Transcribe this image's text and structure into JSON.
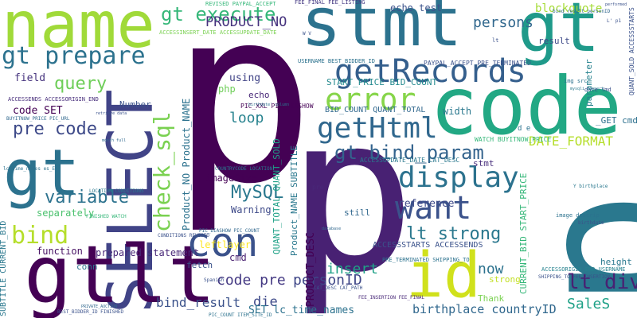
{
  "cloud": {
    "words": [
      {
        "text": "p",
        "color": "#440154"
      },
      {
        "text": "p",
        "color": "#2a788e"
      },
      {
        "text": "p",
        "color": "#482173"
      },
      {
        "text": "name",
        "color": "#a0da39"
      },
      {
        "text": "stmt",
        "color": "#2c728e"
      },
      {
        "text": "gt",
        "color": "#1f9a8a"
      },
      {
        "text": "code",
        "color": "#22a884"
      },
      {
        "text": "SELECT",
        "color": "#414487"
      },
      {
        "text": "gt",
        "color": "#2c728e"
      },
      {
        "text": "gtlt",
        "color": "#440154"
      },
      {
        "text": "id",
        "color": "#d0e11c"
      },
      {
        "text": "con",
        "color": "#3b528b"
      },
      {
        "text": "getRecords",
        "color": "#355f8d"
      },
      {
        "text": "gt prepare",
        "color": "#2c728e"
      },
      {
        "text": "check_sql",
        "color": "#7ad151"
      },
      {
        "text": "error",
        "color": "#86d549"
      },
      {
        "text": "getHtml",
        "color": "#31688e"
      },
      {
        "text": "display",
        "color": "#2c728e"
      },
      {
        "text": "want",
        "color": "#3b528b"
      },
      {
        "text": "gt bind_param",
        "color": "#33638d"
      },
      {
        "text": "bind",
        "color": "#b5de2b"
      },
      {
        "text": "gt execute",
        "color": "#35b779"
      },
      {
        "text": "lt strong",
        "color": "#2a788e"
      },
      {
        "text": "query",
        "color": "#6ece58"
      },
      {
        "text": "pre code",
        "color": "#3e4a89"
      },
      {
        "text": "variable",
        "color": "#2c728e"
      },
      {
        "text": "MySQL",
        "color": "#2a788e"
      },
      {
        "text": "DATE_FORMAT",
        "color": "#b5de2b"
      },
      {
        "text": "PRODUCT_NO",
        "color": "#46337e"
      },
      {
        "text": "persons",
        "color": "#31688e"
      },
      {
        "text": "loop",
        "color": "#26828e"
      },
      {
        "text": "insert",
        "color": "#1fa187"
      },
      {
        "text": "personID",
        "color": "#3f4788"
      },
      {
        "text": "code pre",
        "color": "#443983"
      },
      {
        "text": "bind_result",
        "color": "#3b528b"
      },
      {
        "text": "die",
        "color": "#3e4a89"
      },
      {
        "text": "lt div",
        "color": "#482173"
      },
      {
        "text": "SaleS",
        "color": "#1fa187"
      },
      {
        "text": "now",
        "color": "#2c728e"
      },
      {
        "text": "birthplace countryID",
        "color": "#31688e"
      },
      {
        "text": "echo test",
        "color": "#3b528b"
      },
      {
        "text": "blockquote",
        "color": "#a5db36"
      },
      {
        "text": "code SET",
        "color": "#440154"
      },
      {
        "text": "field",
        "color": "#46337e"
      },
      {
        "text": "using",
        "color": "#414487"
      },
      {
        "text": "php",
        "color": "#6ece58"
      },
      {
        "text": "echo",
        "color": "#482878"
      },
      {
        "text": "Number",
        "color": "#3b528b"
      },
      {
        "text": "function",
        "color": "#471063"
      },
      {
        "text": "separately",
        "color": "#4ac16d"
      },
      {
        "text": "prepared statement",
        "color": "#482878"
      },
      {
        "text": "fetch",
        "color": "#3b528b"
      },
      {
        "text": "cmd",
        "color": "#481f70"
      },
      {
        "text": "conn",
        "color": "#2c728e"
      },
      {
        "text": "Warning",
        "color": "#3e4a89"
      },
      {
        "text": "imageSize",
        "color": "#440154"
      },
      {
        "text": "leftlayer",
        "color": "#fde725"
      },
      {
        "text": "reference",
        "color": "#3e4a89"
      },
      {
        "text": "width",
        "color": "#2a788e"
      },
      {
        "text": "height",
        "color": "#2a788e"
      },
      {
        "text": "Thank",
        "color": "#7ad151"
      },
      {
        "text": "strong",
        "color": "#c2df23"
      },
      {
        "text": "stmt",
        "color": "#472d7b"
      },
      {
        "text": "result",
        "color": "#3e4a89"
      },
      {
        "text": "parameter",
        "color": "#26828e"
      },
      {
        "text": "still",
        "color": "#31688e"
      },
      {
        "text": "_GET cmd",
        "color": "#2d708e"
      },
      {
        "text": "Product_NO Product_NAME",
        "color": "#2c728e"
      },
      {
        "text": "Product_NAME SUBTITLE",
        "color": "#2a788e"
      },
      {
        "text": "QUANT_TOTAL QUANT_SOLD",
        "color": "#1fa187"
      },
      {
        "text": "PRODUCT_DESC",
        "color": "#440154"
      },
      {
        "text": "CURRENT_BID START_PRICE",
        "color": "#35b779"
      },
      {
        "text": "START_PRICE BID_COUNT",
        "color": "#23898e"
      },
      {
        "text": "BID_COUNT QUANT_TOTAL",
        "color": "#31688e"
      },
      {
        "text": "SET lc_time_names",
        "color": "#2c728e"
      },
      {
        "text": "ACCESSSTARTS ACCESSENDS",
        "color": "#3b528b"
      },
      {
        "text": "SUBTITLE CURRENT_BID",
        "color": "#2a788e"
      },
      {
        "text": "QUANT_SOLD ACCESSSTARTS",
        "color": "#3b528b"
      },
      {
        "text": "WATCH BUYITNOW_PRICE",
        "color": "#35b779"
      },
      {
        "text": "ACCESSUPDATE_DATE CAT_DESC",
        "color": "#2a788e"
      },
      {
        "text": "PIC_XXL PIC_DIASHOW",
        "color": "#440154"
      },
      {
        "text": "USERNAME BEST_BIDDER_ID",
        "color": "#2c728e"
      },
      {
        "text": "PAYPAL_ACCEPT PRE_TERMINATED",
        "color": "#3b528b"
      },
      {
        "text": "REVISED PAYPAL_ACCEPT",
        "color": "#35b779"
      },
      {
        "text": "FEE_FINAL FEE_LISTING",
        "color": "#443983"
      },
      {
        "text": "ACCESSENDS ACCESSORIGIN_END",
        "color": "#472d7b"
      },
      {
        "text": "ACCESSINSERT_DATE ACCESSUPDATE_DATE",
        "color": "#7ad151"
      },
      {
        "text": "ACCESSORIGIN_END USERNAME",
        "color": "#26828e"
      },
      {
        "text": "PRE_TERMINATED SHIPPING_TO",
        "color": "#2c728e"
      },
      {
        "text": "SHIPPING_TO FEE_INSERTION",
        "color": "#3b528b"
      },
      {
        "text": "FEE_INSERTION FEE_FINAL",
        "color": "#482878"
      },
      {
        "text": "BUYITNOW_PRICE PIC_URL",
        "color": "#31688e"
      },
      {
        "text": "lc_time_names es_ES",
        "color": "#2c728e"
      },
      {
        "text": "FINISHED WATCH",
        "color": "#35b779"
      },
      {
        "text": "LOCATION CONDITIONS",
        "color": "#2a788e"
      },
      {
        "text": "COUNTRYCODE LOCATION",
        "color": "#2a788e"
      },
      {
        "text": "CONDITIONS REVISED",
        "color": "#3b528b"
      },
      {
        "text": "PIC_COUNT ITEM_SITE_ID",
        "color": "#2c728e"
      },
      {
        "text": "BEST_BIDDER_ID FINISHED",
        "color": "#3b528b"
      },
      {
        "text": "PIC_DIASHOW PIC_COUNT",
        "color": "#31688e"
      },
      {
        "text": "CAT_DESC CAT_PATH",
        "color": "#3b528b"
      },
      {
        "text": "date Ymd",
        "color": "#3b528b"
      },
      {
        "text": "img src",
        "color": "#2c728e"
      },
      {
        "text": "image descrip",
        "color": "#2c728e"
      },
      {
        "text": "Spanish",
        "color": "#3b528b"
      },
      {
        "text": "birthdate",
        "color": "#3b528b"
      },
      {
        "text": "retrieve data",
        "color": "#3b528b"
      },
      {
        "text": "month full",
        "color": "#31688e"
      },
      {
        "text": "Y birthplace",
        "color": "#2a788e"
      },
      {
        "text": "database",
        "color": "#31688e"
      },
      {
        "text": "mysqli_connect",
        "color": "#2a788e"
      },
      {
        "text": "PRIVATE_AUCTION",
        "color": "#31688e"
      },
      {
        "text": "performed",
        "color": "#3b528b"
      },
      {
        "text": "pre",
        "color": "#482878"
      },
      {
        "text": "lt",
        "color": "#3b528b"
      },
      {
        "text": "d e",
        "color": "#2c728e"
      },
      {
        "text": "L' p1",
        "color": "#3b528b"
      },
      {
        "text": "W V",
        "color": "#3b528b"
      },
      {
        "text": "birthdate' column",
        "color": "#2c728e"
      },
      {
        "text": "bind_result personID",
        "color": "#31688e"
      }
    ]
  }
}
